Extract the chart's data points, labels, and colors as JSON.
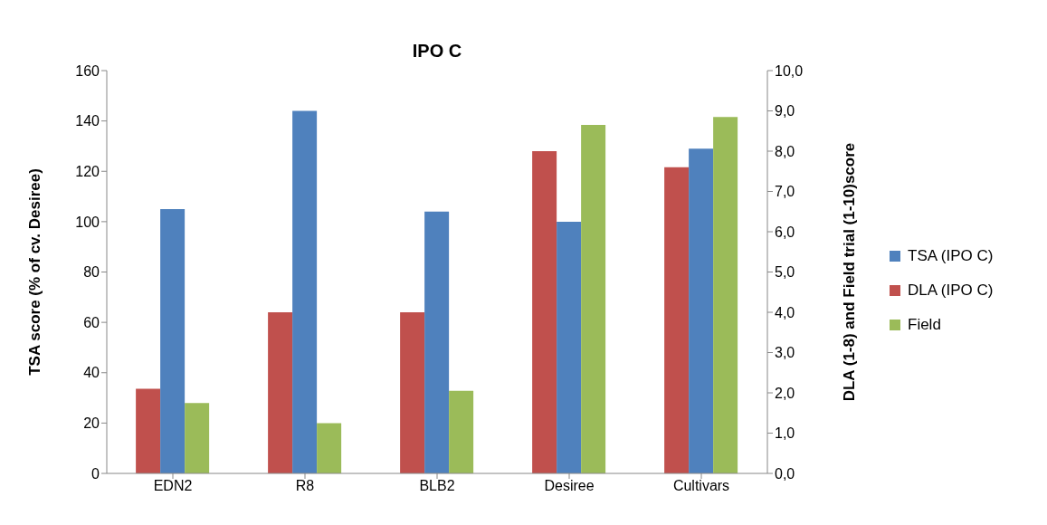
{
  "chart_data": {
    "type": "bar",
    "title": "IPO C",
    "categories": [
      "EDN2",
      "R8",
      "BLB2",
      "Desiree",
      "Cultivars"
    ],
    "ylabel": "TSA score (% of cv. Desiree)",
    "y2label": "DLA (1-8) and Field trial (1-10)score",
    "ylim": [
      0,
      160
    ],
    "yticks": [
      0,
      20,
      40,
      60,
      80,
      100,
      120,
      140,
      160
    ],
    "y2lim": [
      0,
      10
    ],
    "y2ticks": [
      {
        "value": 0,
        "label": "0,0"
      },
      {
        "value": 1,
        "label": "1,0"
      },
      {
        "value": 2,
        "label": "2,0"
      },
      {
        "value": 3,
        "label": "3,0"
      },
      {
        "value": 4,
        "label": "4,0"
      },
      {
        "value": 5,
        "label": "5,0"
      },
      {
        "value": 6,
        "label": "6,0"
      },
      {
        "value": 7,
        "label": "7,0"
      },
      {
        "value": 8,
        "label": "8,0"
      },
      {
        "value": 9,
        "label": "9,0"
      },
      {
        "value": 10,
        "label": "10,0"
      }
    ],
    "series": [
      {
        "name": "TSA (IPO C)",
        "color": "#4f81bd",
        "values": [
          105,
          144,
          104,
          100,
          129
        ]
      },
      {
        "name": "DLA (IPO C)",
        "color": "#c0504d",
        "axis": "y2",
        "values": [
          2.1,
          4.0,
          4.0,
          8.0,
          7.6
        ]
      },
      {
        "name": "Field",
        "color": "#9bbb59",
        "axis": "y2",
        "values": [
          1.75,
          1.25,
          2.05,
          8.65,
          8.85
        ]
      }
    ],
    "grid": false,
    "legend": "right"
  }
}
